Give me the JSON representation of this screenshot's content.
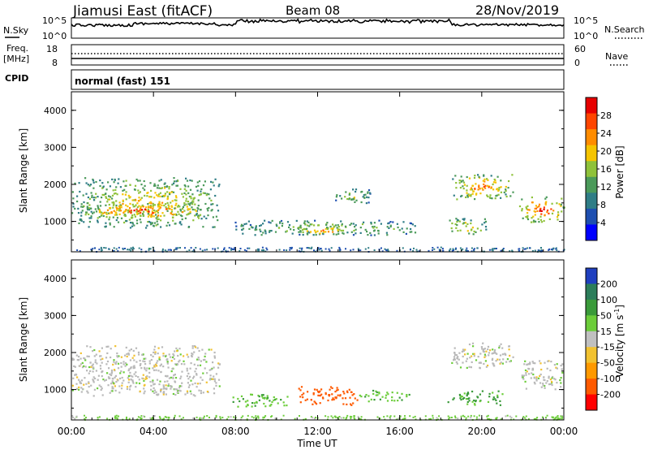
{
  "header": {
    "title": "Jiamusi East (fitACF)",
    "beam": "Beam 08",
    "date": "28/Nov/2019"
  },
  "ancillary": {
    "nsky_label": "N.Sky",
    "nsky_ticks": [
      "10^5",
      "10^0"
    ],
    "nsearch_label": "N.Search",
    "nsearch_ticks": [
      "10^5",
      "10^0"
    ],
    "freq_label": "Freq.",
    "freq_unit": "[MHz]",
    "freq_ticks": [
      "18",
      "8"
    ],
    "nave_label": "Nave",
    "nave_ticks": [
      "60",
      "0"
    ],
    "cpid_label": "CPID",
    "cpid_value": "normal (fast) 151"
  },
  "colors": {
    "power": [
      "#0000ff",
      "#1e4fb0",
      "#2f7d86",
      "#4b9a5a",
      "#8fc23a",
      "#f5c400",
      "#ff8c00",
      "#ff4500",
      "#e60000"
    ],
    "velocity": [
      "#1f3fbf",
      "#2c7d5a",
      "#3a9a3a",
      "#6ccd3a",
      "#c0c0c0",
      "#f2c230",
      "#ff9900",
      "#ff5a00",
      "#ff0000"
    ],
    "ground_scatter": "#b9b9b9"
  },
  "chart_data": [
    {
      "type": "heatmap",
      "name": "power",
      "ylabel": "Slant Range [km]",
      "ylim": [
        180,
        4500
      ],
      "yticks": [
        "1000",
        "2000",
        "3000",
        "4000"
      ],
      "xlim": [
        "00:00",
        "24:00"
      ],
      "colorbar_label": "Power [dB]",
      "colorbar_ticks": [
        "4",
        "8",
        "12",
        "16",
        "20",
        "24",
        "28"
      ],
      "colorbar_range": [
        0,
        32
      ],
      "regions": [
        {
          "t0": 0.0,
          "t1": 7.2,
          "r0": 850,
          "r1": 2200,
          "level": 5
        },
        {
          "t0": 0.5,
          "t1": 6.5,
          "r0": 1100,
          "r1": 1500,
          "level": 7
        },
        {
          "t0": 7.8,
          "t1": 16.8,
          "r0": 650,
          "r1": 1050,
          "level": 4
        },
        {
          "t0": 11.0,
          "t1": 13.5,
          "r0": 650,
          "r1": 900,
          "level": 6
        },
        {
          "t0": 12.8,
          "t1": 14.6,
          "r0": 1500,
          "r1": 1900,
          "level": 4
        },
        {
          "t0": 18.5,
          "t1": 21.5,
          "r0": 1600,
          "r1": 2300,
          "level": 6
        },
        {
          "t0": 18.2,
          "t1": 20.2,
          "r0": 650,
          "r1": 1100,
          "level": 5
        },
        {
          "t0": 21.8,
          "t1": 24.0,
          "r0": 1000,
          "r1": 1700,
          "level": 7
        }
      ]
    },
    {
      "type": "heatmap",
      "name": "velocity",
      "ylabel": "Slant Range [km]",
      "ylim": [
        180,
        4500
      ],
      "yticks": [
        "1000",
        "2000",
        "3000",
        "4000"
      ],
      "xlabel": "Time UT",
      "xticks": [
        "00:00",
        "04:00",
        "08:00",
        "12:00",
        "16:00",
        "20:00",
        "00:00"
      ],
      "colorbar_label": "Velocity [m s^-1]",
      "colorbar_ticks": [
        "200",
        "100",
        "50",
        "15",
        "-15",
        "-50",
        "-100",
        "-200"
      ],
      "regions": [
        {
          "t0": 0.0,
          "t1": 7.2,
          "r0": 850,
          "r1": 2200,
          "v": 0
        },
        {
          "t0": 7.8,
          "t1": 10.5,
          "r0": 550,
          "r1": 900,
          "v": 40
        },
        {
          "t0": 11.0,
          "t1": 14.0,
          "r0": 600,
          "r1": 1100,
          "v": -150
        },
        {
          "t0": 14.0,
          "t1": 16.5,
          "r0": 700,
          "r1": 1000,
          "v": 40
        },
        {
          "t0": 18.5,
          "t1": 21.5,
          "r0": 1600,
          "r1": 2300,
          "v": 0
        },
        {
          "t0": 18.2,
          "t1": 21.0,
          "r0": 600,
          "r1": 1000,
          "v": 60
        },
        {
          "t0": 21.8,
          "t1": 24.0,
          "r0": 1000,
          "r1": 1800,
          "v": 0
        }
      ]
    }
  ]
}
